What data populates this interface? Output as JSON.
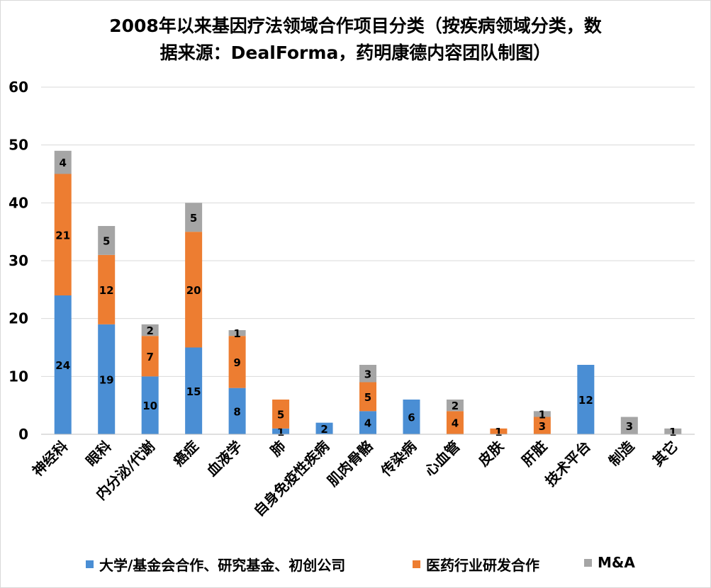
{
  "chart_data": {
    "type": "bar",
    "stacked": true,
    "title_line1": "2008年以来基因疗法领域合作项目分类（按疾病领域分类，数",
    "title_line2": "据来源：DealForma，药明康德内容团队制图）",
    "categories": [
      "神经科",
      "眼科",
      "内分泌/代谢",
      "癌症",
      "血液学",
      "肺",
      "自身免疫性疾病",
      "肌肉骨骼",
      "传染病",
      "心血管",
      "皮肤",
      "肝脏",
      "技术平台",
      "制造",
      "其它"
    ],
    "series": [
      {
        "name": "大学/基金会合作、研究基金、初创公司",
        "color": "#4a8ed4",
        "values": [
          24,
          19,
          10,
          15,
          8,
          1,
          2,
          4,
          6,
          0,
          0,
          0,
          12,
          0,
          0
        ]
      },
      {
        "name": "医药行业研发合作",
        "color": "#ed7d31",
        "values": [
          21,
          12,
          7,
          20,
          9,
          5,
          0,
          5,
          0,
          4,
          1,
          3,
          0,
          0,
          0
        ]
      },
      {
        "name": "M&A",
        "color": "#a5a5a5",
        "values": [
          4,
          5,
          2,
          5,
          1,
          0,
          0,
          3,
          0,
          2,
          0,
          1,
          0,
          3,
          1
        ]
      }
    ],
    "ylim": [
      0,
      60
    ],
    "yticks": [
      0,
      10,
      20,
      30,
      40,
      50,
      60
    ],
    "grid": true,
    "legend_position": "bottom"
  }
}
